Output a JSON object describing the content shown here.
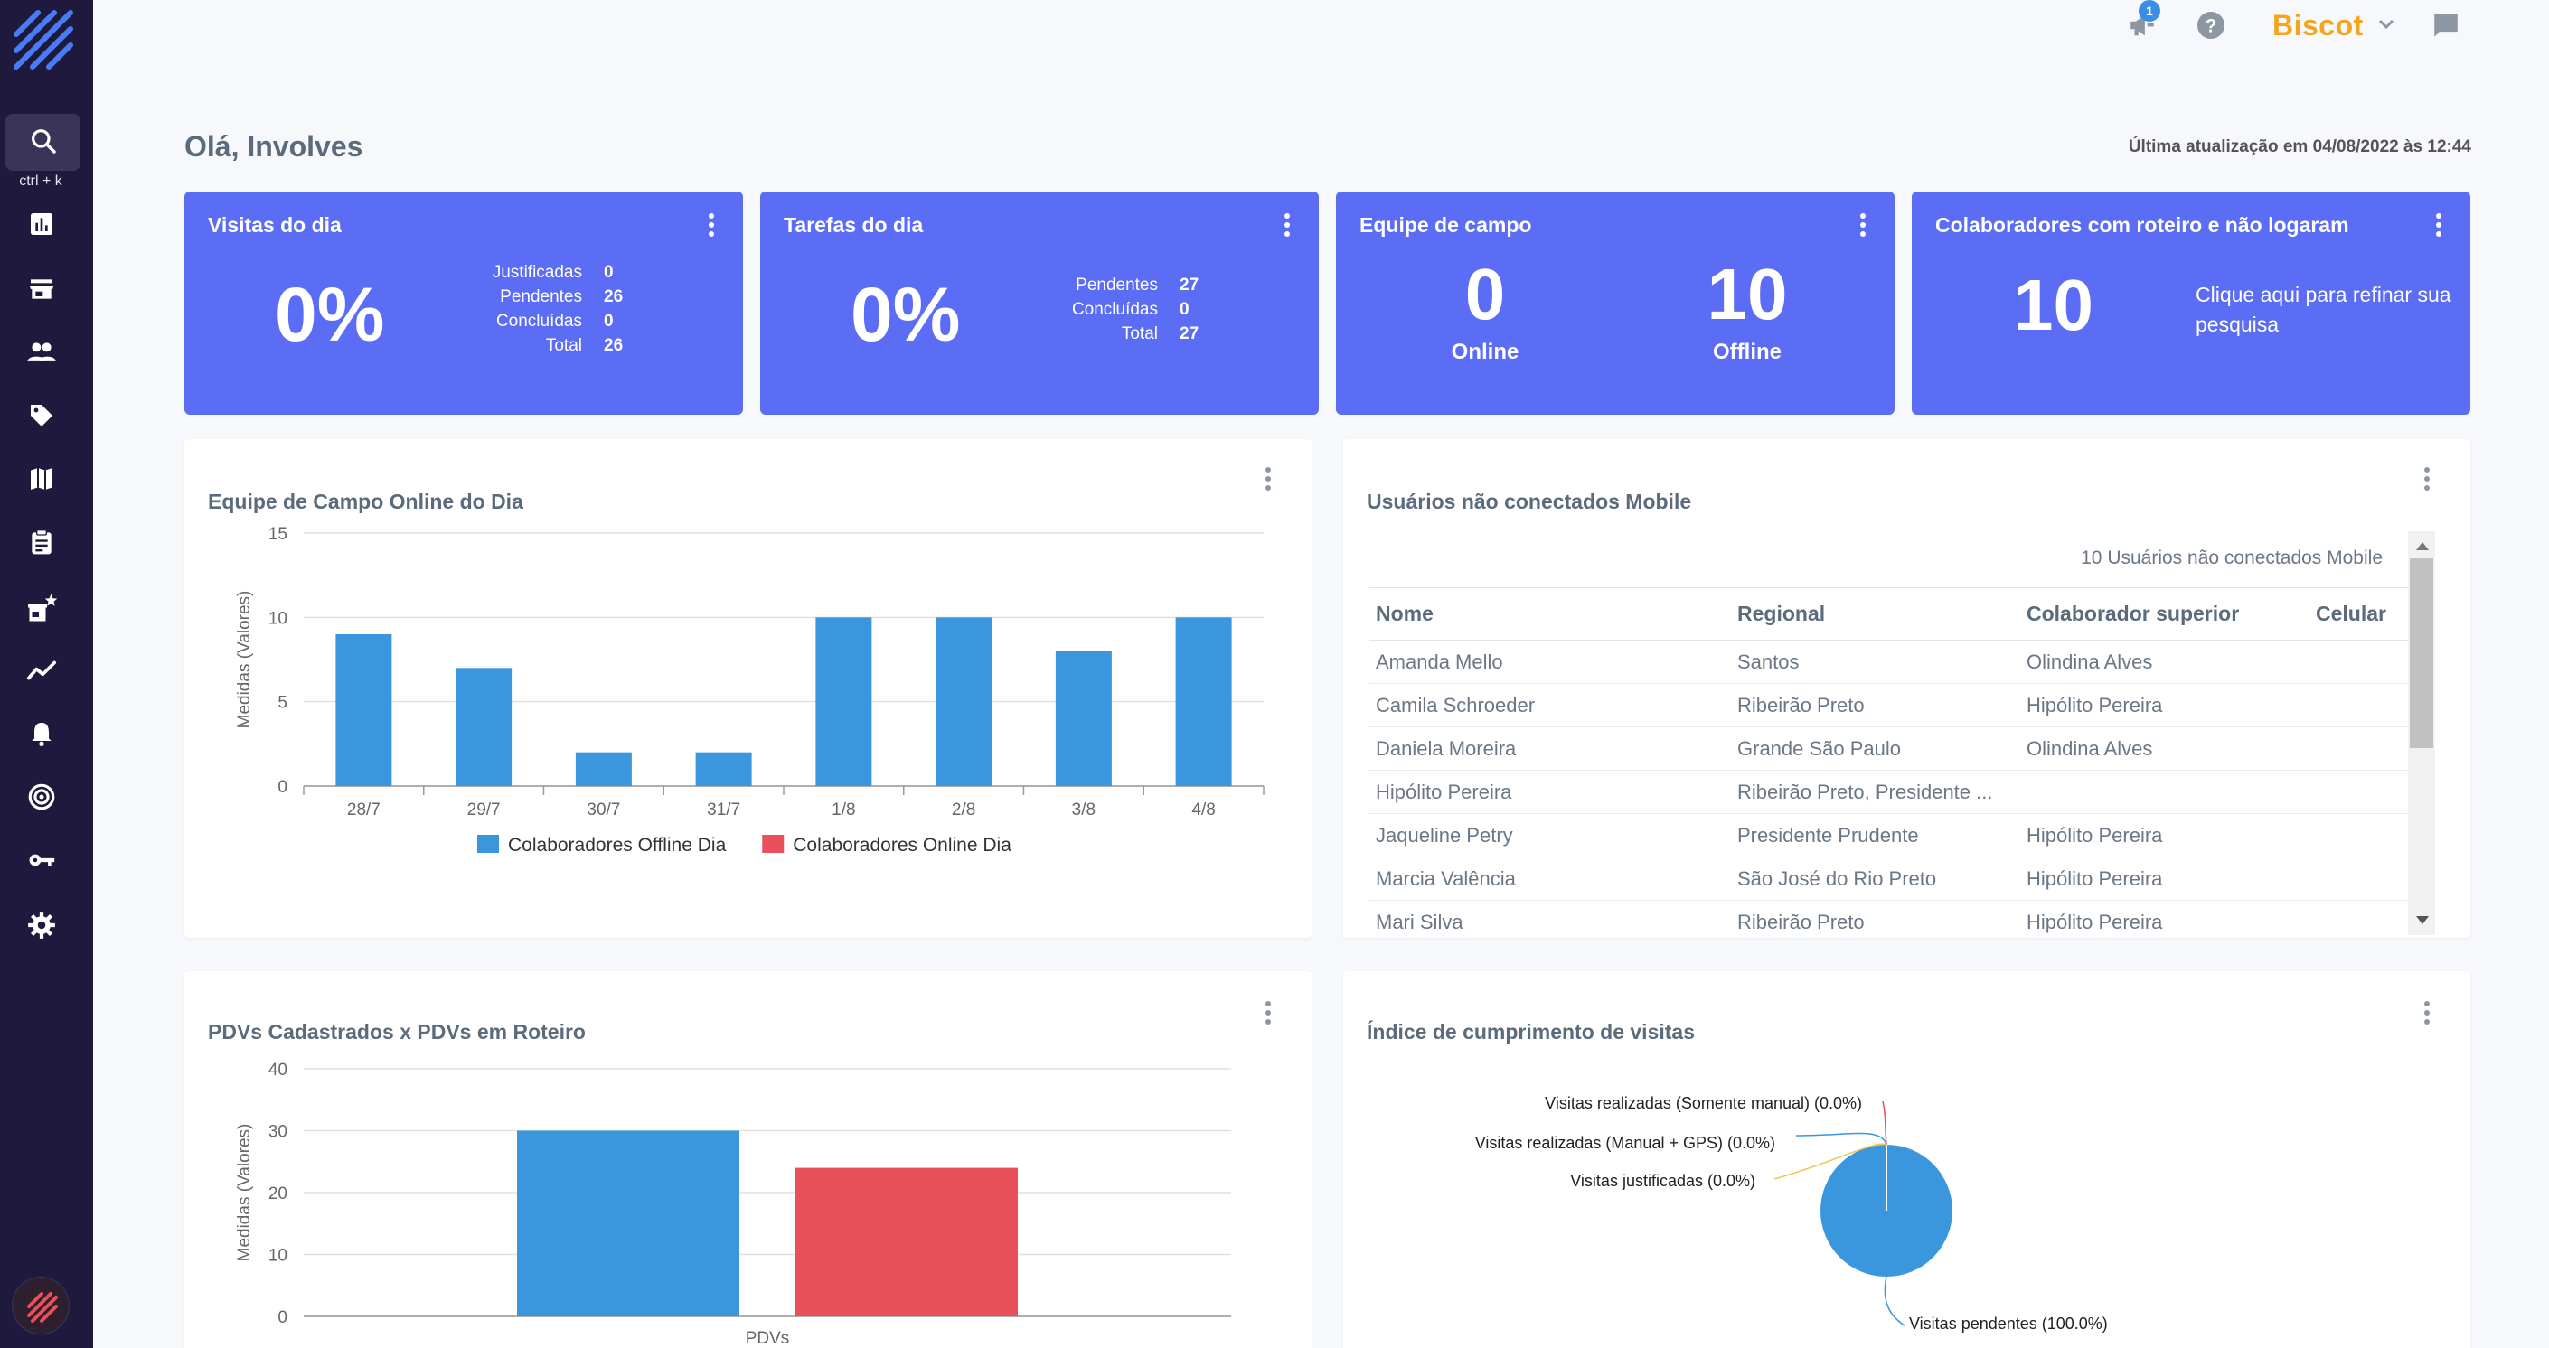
{
  "sidebar": {
    "shortcut": "ctrl + k",
    "icons": [
      "search-icon",
      "dashboard-icon",
      "store-icon",
      "people-icon",
      "tag-icon",
      "map-icon",
      "clipboard-icon",
      "store-star-icon",
      "trend-icon",
      "bell-icon",
      "target-icon",
      "key-icon",
      "gear-icon"
    ]
  },
  "topbar": {
    "notification_count": "1",
    "brand": "Biscot",
    "brand_color": "#f4a51c"
  },
  "greeting": "Olá, Involves",
  "last_update": "Última atualização em 04/08/2022 às 12:44",
  "kpis": {
    "visitas": {
      "title": "Visitas do dia",
      "percent": "0%",
      "rows": [
        {
          "label": "Justificadas",
          "value": "0"
        },
        {
          "label": "Pendentes",
          "value": "26"
        },
        {
          "label": "Concluídas",
          "value": "0"
        },
        {
          "label": "Total",
          "value": "26"
        }
      ]
    },
    "tarefas": {
      "title": "Tarefas do dia",
      "percent": "0%",
      "rows": [
        {
          "label": "Pendentes",
          "value": "27"
        },
        {
          "label": "Concluídas",
          "value": "0"
        },
        {
          "label": "Total",
          "value": "27"
        }
      ]
    },
    "equipe": {
      "title": "Equipe de campo",
      "online_value": "0",
      "online_label": "Online",
      "offline_value": "10",
      "offline_label": "Offline"
    },
    "colaboradores": {
      "title": "Colaboradores com roteiro e não logaram",
      "value": "10",
      "hint": "Clique aqui para refinar sua pesquisa"
    }
  },
  "panel_equipe": {
    "title": "Equipe de Campo Online do Dia"
  },
  "panel_usuarios": {
    "title": "Usuários não conectados Mobile",
    "count_text": "10 Usuários não conectados Mobile",
    "columns": [
      "Nome",
      "Regional",
      "Colaborador superior",
      "Celular"
    ],
    "rows": [
      [
        "Amanda Mello",
        "Santos",
        "Olindina Alves",
        ""
      ],
      [
        "Camila Schroeder",
        "Ribeirão Preto",
        "Hipólito Pereira",
        ""
      ],
      [
        "Daniela Moreira",
        "Grande São Paulo",
        "Olindina Alves",
        ""
      ],
      [
        "Hipólito Pereira",
        "Ribeirão Preto, Presidente ...",
        "",
        ""
      ],
      [
        "Jaqueline Petry",
        "Presidente Prudente",
        "Hipólito Pereira",
        ""
      ],
      [
        "Marcia Valência",
        "São José do Rio Preto",
        "Hipólito Pereira",
        ""
      ],
      [
        "Mari Silva",
        "Ribeirão Preto",
        "Hipólito Pereira",
        ""
      ]
    ]
  },
  "panel_pdvs": {
    "title": "PDVs Cadastrados x PDVs em Roteiro"
  },
  "panel_indice": {
    "title": "Índice de cumprimento de visitas"
  },
  "chart_data": [
    {
      "type": "bar",
      "categories": [
        "28/7",
        "29/7",
        "30/7",
        "31/7",
        "1/8",
        "2/8",
        "3/8",
        "4/8"
      ],
      "series": [
        {
          "name": "Colaboradores Offline Dia",
          "values": [
            9,
            7,
            2,
            2,
            10,
            10,
            8,
            10
          ],
          "color": "#3a96dd"
        },
        {
          "name": "Colaboradores Online Dia",
          "values": [
            0,
            0,
            0,
            0,
            0,
            0,
            0,
            0
          ],
          "color": "#e8505b"
        }
      ],
      "ylabel": "Medidas (Valores)",
      "ylim": [
        0,
        15
      ],
      "yticks": [
        "0",
        "5",
        "10",
        "15"
      ],
      "grid": true,
      "legend": "bottom"
    },
    {
      "type": "bar",
      "categories": [
        "PDVs"
      ],
      "series": [
        {
          "values": [
            30
          ],
          "color": "#3a96dd"
        },
        {
          "values": [
            24
          ],
          "color": "#e8505b"
        }
      ],
      "ylabel": "Medidas (Valores)",
      "ylim": [
        0,
        40
      ],
      "yticks": [
        "0",
        "10",
        "20",
        "30",
        "40"
      ],
      "grid": true
    },
    {
      "type": "pie",
      "slices": [
        {
          "label": "Visitas realizadas (Somente manual) (0.0%)",
          "value": 0.0,
          "color": "#e8505b"
        },
        {
          "label": "Visitas realizadas (Manual + GPS) (0.0%)",
          "value": 0.0,
          "color": "#3a96dd"
        },
        {
          "label": "Visitas justificadas (0.0%)",
          "value": 0.0,
          "color": "#f4c14f"
        },
        {
          "label": "Visitas pendentes (100.0%)",
          "value": 100.0,
          "color": "#3a96dd"
        }
      ]
    }
  ]
}
